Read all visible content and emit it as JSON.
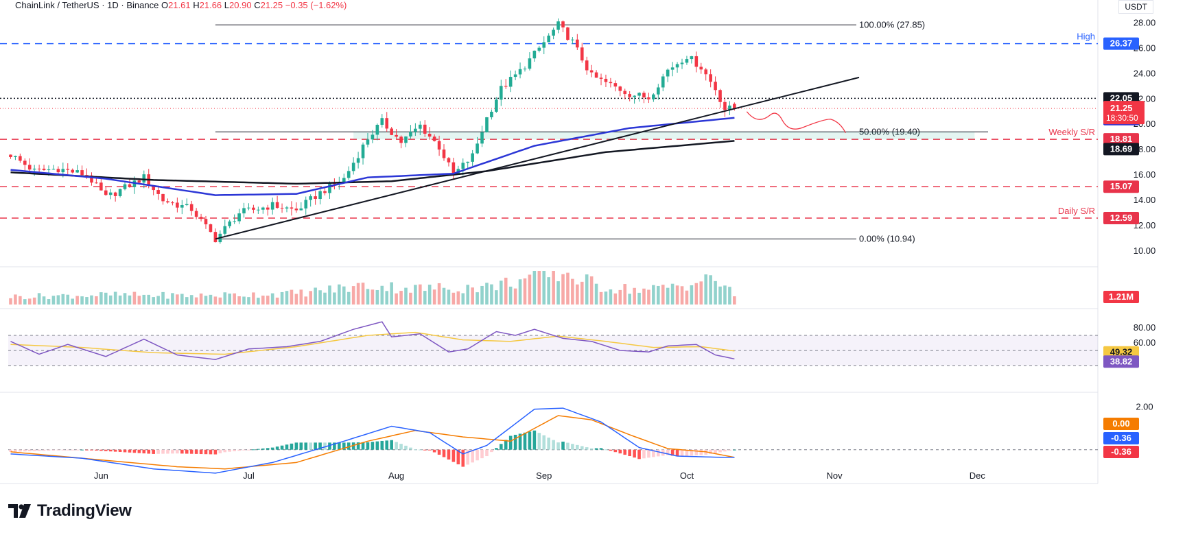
{
  "header": {
    "pair": "ChainLink / TetherUS · 1D · Binance",
    "open_label": "O",
    "open": "21.61",
    "high_label": "H",
    "high": "21.66",
    "low_label": "L",
    "low": "20.90",
    "close_label": "C",
    "close": "21.25",
    "change": "−0.35 (−1.62%)"
  },
  "currency": "USDT",
  "brand": "TradingView",
  "colors": {
    "up": "#22ab94",
    "down": "#f23645",
    "ma50": "#2b36d6",
    "ma200": "#131722",
    "rsi": "#7e57c2",
    "rsi_ma": "#f5c842",
    "macd": "#2962ff",
    "signal": "#f57c00",
    "level": "#e8334a",
    "fib": "#131722",
    "resistance": "#131722"
  },
  "chart_data": {
    "type": "candlestick",
    "x_axis_labels": [
      "Jun",
      "Jul",
      "Aug",
      "Sep",
      "Oct",
      "Nov",
      "Dec"
    ],
    "y_axis_ticks": [
      "28.00",
      "26.00",
      "24.00",
      "22.00",
      "20.00",
      "18.00",
      "16.00",
      "14.00",
      "12.00",
      "10.00"
    ],
    "price_range": [
      9.5,
      28.3
    ],
    "anchor_points": [
      [
        0,
        17.6
      ],
      [
        5,
        16.3
      ],
      [
        10,
        16.5
      ],
      [
        16,
        16.0
      ],
      [
        20,
        14.2
      ],
      [
        28,
        15.8
      ],
      [
        32,
        14.0
      ],
      [
        38,
        13.3
      ],
      [
        43,
        10.94
      ],
      [
        48,
        13.0
      ],
      [
        55,
        13.6
      ],
      [
        60,
        13.2
      ],
      [
        65,
        14.6
      ],
      [
        70,
        15.7
      ],
      [
        75,
        18.9
      ],
      [
        78,
        20.2
      ],
      [
        82,
        18.6
      ],
      [
        86,
        19.9
      ],
      [
        90,
        18.2
      ],
      [
        93,
        16.0
      ],
      [
        97,
        17.5
      ],
      [
        100,
        20.5
      ],
      [
        103,
        22.8
      ],
      [
        107,
        24.2
      ],
      [
        111,
        26.0
      ],
      [
        115,
        27.85
      ],
      [
        118,
        26.5
      ],
      [
        122,
        23.8
      ],
      [
        126,
        23.1
      ],
      [
        130,
        22.4
      ],
      [
        134,
        22.1
      ],
      [
        138,
        24.3
      ],
      [
        142,
        25.4
      ],
      [
        145,
        24.5
      ],
      [
        148,
        22.8
      ],
      [
        150,
        21.2
      ],
      [
        152,
        21.25
      ]
    ],
    "last_candle_index": 152,
    "volume_anchor": [
      [
        0,
        0.25
      ],
      [
        20,
        0.3
      ],
      [
        40,
        0.28
      ],
      [
        60,
        0.35
      ],
      [
        75,
        0.6
      ],
      [
        85,
        0.5
      ],
      [
        100,
        0.55
      ],
      [
        110,
        0.85
      ],
      [
        116,
        1.0
      ],
      [
        124,
        0.55
      ],
      [
        134,
        0.45
      ],
      [
        148,
        0.8
      ],
      [
        152,
        0.3
      ]
    ],
    "volume_last": "1.21M",
    "ma50": {
      "label": "20.51",
      "anchor": [
        [
          0,
          16.4
        ],
        [
          20,
          15.7
        ],
        [
          43,
          14.4
        ],
        [
          60,
          14.5
        ],
        [
          75,
          15.8
        ],
        [
          93,
          16.1
        ],
        [
          110,
          18.3
        ],
        [
          130,
          19.7
        ],
        [
          152,
          20.51
        ]
      ]
    },
    "ma200": {
      "label": "18.69",
      "anchor": [
        [
          0,
          16.2
        ],
        [
          30,
          15.6
        ],
        [
          60,
          15.3
        ],
        [
          80,
          15.5
        ],
        [
          100,
          16.3
        ],
        [
          125,
          17.8
        ],
        [
          152,
          18.69
        ]
      ]
    },
    "levels": [
      {
        "value": 26.37,
        "label": "26.37",
        "text": "High",
        "style": "dashed-blue"
      },
      {
        "value": 22.05,
        "label": "22.05",
        "text": "",
        "style": "dotted-black"
      },
      {
        "value": 18.81,
        "label": "18.81",
        "text": "Weekly S/R",
        "style": "dashed-red"
      },
      {
        "value": 15.07,
        "label": "15.07",
        "text": "",
        "style": "dashed-red"
      },
      {
        "value": 12.59,
        "label": "12.59",
        "text": "Daily S/R",
        "style": "dashed-red"
      }
    ],
    "fib": [
      {
        "value": 27.85,
        "label": "100.00% (27.85)"
      },
      {
        "value": 19.4,
        "label": "50.00% (19.40)"
      },
      {
        "value": 10.94,
        "label": "0.00% (10.94)"
      }
    ],
    "current_price": {
      "value": 21.25,
      "label": "21.25",
      "countdown": "18:30:50"
    },
    "rsi": {
      "ticks": [
        "80.00",
        "60.00"
      ],
      "range": [
        0,
        100
      ],
      "upper": 70,
      "mid": 50,
      "lower": 30,
      "value_label": "38.82",
      "ma_label": "49.32",
      "anchor": [
        [
          0,
          62
        ],
        [
          6,
          45
        ],
        [
          12,
          58
        ],
        [
          20,
          42
        ],
        [
          28,
          65
        ],
        [
          35,
          44
        ],
        [
          43,
          38
        ],
        [
          50,
          52
        ],
        [
          58,
          55
        ],
        [
          65,
          62
        ],
        [
          72,
          78
        ],
        [
          78,
          88
        ],
        [
          80,
          68
        ],
        [
          86,
          72
        ],
        [
          92,
          48
        ],
        [
          96,
          52
        ],
        [
          102,
          75
        ],
        [
          106,
          70
        ],
        [
          110,
          78
        ],
        [
          116,
          66
        ],
        [
          122,
          62
        ],
        [
          128,
          50
        ],
        [
          134,
          48
        ],
        [
          138,
          56
        ],
        [
          144,
          58
        ],
        [
          148,
          44
        ],
        [
          152,
          38.82
        ]
      ],
      "ma_anchor": [
        [
          0,
          58
        ],
        [
          15,
          54
        ],
        [
          30,
          47
        ],
        [
          45,
          45
        ],
        [
          60,
          55
        ],
        [
          75,
          70
        ],
        [
          85,
          74
        ],
        [
          95,
          64
        ],
        [
          105,
          62
        ],
        [
          115,
          69
        ],
        [
          125,
          62
        ],
        [
          135,
          54
        ],
        [
          145,
          55
        ],
        [
          152,
          49.32
        ]
      ]
    },
    "macd": {
      "ticks": [
        "2.00"
      ],
      "range": [
        -1.2,
        2.5
      ],
      "labels": [
        "0.00",
        "-0.36",
        "-0.36"
      ],
      "macd_anchor": [
        [
          0,
          -0.2
        ],
        [
          15,
          -0.4
        ],
        [
          30,
          -0.9
        ],
        [
          43,
          -1.1
        ],
        [
          55,
          -0.6
        ],
        [
          70,
          0.4
        ],
        [
          80,
          1.1
        ],
        [
          88,
          0.8
        ],
        [
          95,
          -0.2
        ],
        [
          100,
          0.2
        ],
        [
          110,
          1.9
        ],
        [
          116,
          1.95
        ],
        [
          124,
          1.3
        ],
        [
          132,
          0.1
        ],
        [
          140,
          -0.3
        ],
        [
          148,
          -0.35
        ],
        [
          152,
          -0.36
        ]
      ],
      "signal_anchor": [
        [
          0,
          -0.1
        ],
        [
          20,
          -0.5
        ],
        [
          35,
          -0.8
        ],
        [
          45,
          -0.9
        ],
        [
          60,
          -0.6
        ],
        [
          75,
          0.4
        ],
        [
          85,
          0.9
        ],
        [
          95,
          0.6
        ],
        [
          105,
          0.4
        ],
        [
          115,
          1.6
        ],
        [
          122,
          1.4
        ],
        [
          130,
          0.7
        ],
        [
          138,
          0.05
        ],
        [
          146,
          -0.1
        ],
        [
          152,
          -0.36
        ]
      ]
    }
  }
}
